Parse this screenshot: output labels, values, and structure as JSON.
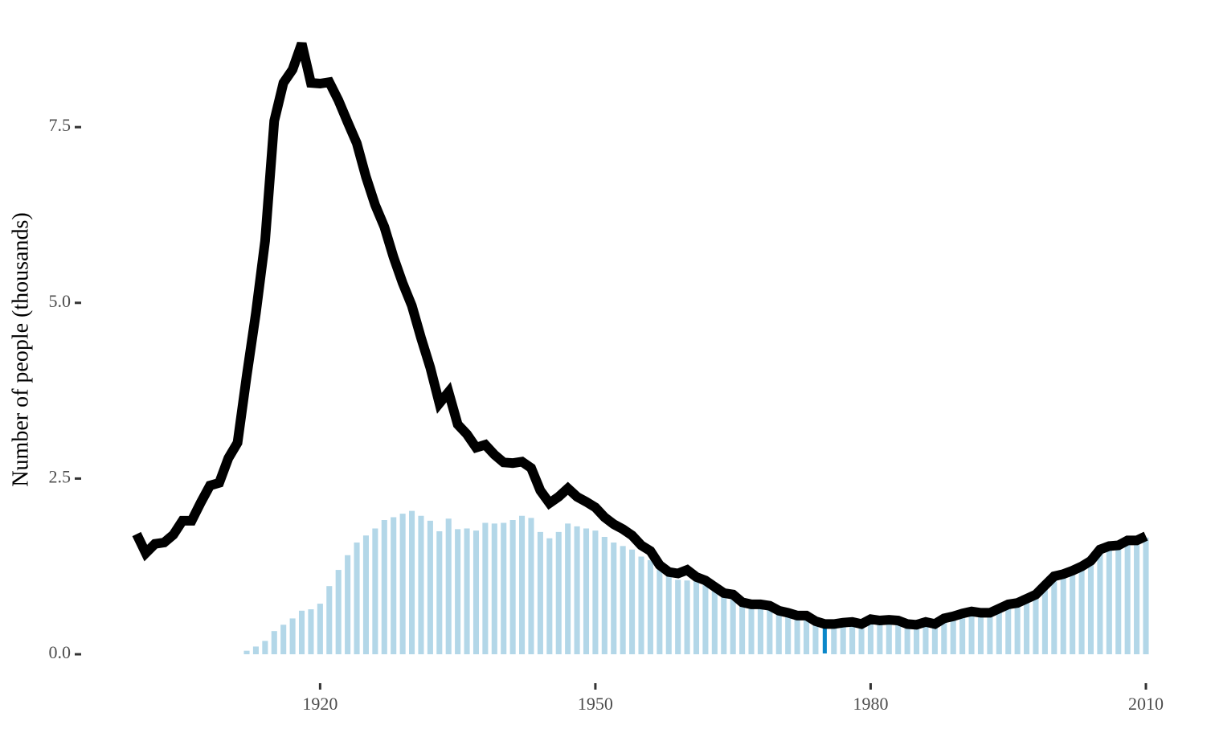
{
  "chart_data": {
    "type": "line-over-bar",
    "ylabel": "Number of people (thousands)",
    "xlim": [
      1900,
      2010
    ],
    "ylim": [
      -0.4,
      9.0
    ],
    "xticks": [
      1920,
      1950,
      1980,
      2010
    ],
    "yticks": [
      {
        "value": 0,
        "label": "0.0"
      },
      2.5,
      {
        "value": 5,
        "label": "5.0"
      },
      7.5
    ],
    "bars": {
      "color": "#b3d7e8",
      "highlight_x": 1975,
      "highlight_color": "#0a87c9",
      "x": [
        1912,
        1913,
        1914,
        1915,
        1916,
        1917,
        1918,
        1919,
        1920,
        1921,
        1922,
        1923,
        1924,
        1925,
        1926,
        1927,
        1928,
        1929,
        1930,
        1931,
        1932,
        1933,
        1934,
        1935,
        1936,
        1937,
        1938,
        1939,
        1940,
        1941,
        1942,
        1943,
        1944,
        1945,
        1946,
        1947,
        1948,
        1949,
        1950,
        1951,
        1952,
        1953,
        1954,
        1955,
        1956,
        1957,
        1958,
        1959,
        1960,
        1961,
        1962,
        1963,
        1964,
        1965,
        1966,
        1967,
        1968,
        1969,
        1970,
        1971,
        1972,
        1973,
        1974,
        1975,
        1976,
        1977,
        1978,
        1979,
        1980,
        1981,
        1982,
        1983,
        1984,
        1985,
        1986,
        1987,
        1988,
        1989,
        1990,
        1991,
        1992,
        1993,
        1994,
        1995,
        1996,
        1997,
        1998,
        1999,
        2000,
        2001,
        2002,
        2003,
        2004,
        2005,
        2006,
        2007,
        2008,
        2009,
        2010
      ],
      "values": [
        0.05,
        0.11,
        0.19,
        0.33,
        0.42,
        0.51,
        0.62,
        0.64,
        0.72,
        0.97,
        1.2,
        1.41,
        1.59,
        1.69,
        1.79,
        1.91,
        1.95,
        2.0,
        2.04,
        1.97,
        1.9,
        1.75,
        1.93,
        1.78,
        1.79,
        1.76,
        1.87,
        1.86,
        1.87,
        1.91,
        1.97,
        1.94,
        1.74,
        1.65,
        1.74,
        1.86,
        1.82,
        1.79,
        1.76,
        1.67,
        1.59,
        1.54,
        1.49,
        1.39,
        1.34,
        1.27,
        1.14,
        1.06,
        1.05,
        1.1,
        0.99,
        0.94,
        0.83,
        0.81,
        0.72,
        0.69,
        0.69,
        0.66,
        0.61,
        0.58,
        0.54,
        0.54,
        0.46,
        0.41,
        0.41,
        0.43,
        0.44,
        0.41,
        0.48,
        0.46,
        0.47,
        0.46,
        0.41,
        0.4,
        0.44,
        0.41,
        0.49,
        0.52,
        0.56,
        0.59,
        0.57,
        0.57,
        0.63,
        0.69,
        0.71,
        0.77,
        0.83,
        0.96,
        1.09,
        1.12,
        1.17,
        1.23,
        1.31,
        1.47,
        1.52,
        1.53,
        1.6,
        1.6,
        1.66
      ]
    },
    "line": {
      "color": "#000000",
      "x": [
        1900,
        1901,
        1902,
        1903,
        1904,
        1905,
        1906,
        1907,
        1908,
        1909,
        1910,
        1911,
        1912,
        1913,
        1914,
        1915,
        1916,
        1917,
        1918,
        1919,
        1920,
        1921,
        1922,
        1923,
        1924,
        1925,
        1926,
        1927,
        1928,
        1929,
        1930,
        1931,
        1932,
        1933,
        1934,
        1935,
        1936,
        1937,
        1938,
        1939,
        1940,
        1941,
        1942,
        1943,
        1944,
        1945,
        1946,
        1947,
        1948,
        1949,
        1950,
        1951,
        1952,
        1953,
        1954,
        1955,
        1956,
        1957,
        1958,
        1959,
        1960,
        1961,
        1962,
        1963,
        1964,
        1965,
        1966,
        1967,
        1968,
        1969,
        1970,
        1971,
        1972,
        1973,
        1974,
        1975,
        1976,
        1977,
        1978,
        1979,
        1980,
        1981,
        1982,
        1983,
        1984,
        1985,
        1986,
        1987,
        1988,
        1989,
        1990,
        1991,
        1992,
        1993,
        1994,
        1995,
        1996,
        1997,
        1998,
        1999,
        2000,
        2001,
        2002,
        2003,
        2004,
        2005,
        2006,
        2007,
        2008,
        2009,
        2010
      ],
      "values": [
        1.71,
        1.44,
        1.57,
        1.59,
        1.7,
        1.9,
        1.9,
        2.16,
        2.4,
        2.44,
        2.79,
        3.01,
        3.96,
        4.85,
        5.88,
        7.59,
        8.13,
        8.32,
        8.69,
        8.13,
        8.12,
        8.14,
        7.88,
        7.57,
        7.27,
        6.79,
        6.39,
        6.08,
        5.65,
        5.28,
        4.96,
        4.5,
        4.08,
        3.57,
        3.73,
        3.27,
        3.13,
        2.94,
        2.98,
        2.84,
        2.73,
        2.72,
        2.74,
        2.65,
        2.33,
        2.15,
        2.24,
        2.36,
        2.24,
        2.17,
        2.09,
        1.95,
        1.85,
        1.78,
        1.69,
        1.55,
        1.47,
        1.27,
        1.17,
        1.15,
        1.2,
        1.1,
        1.05,
        0.96,
        0.87,
        0.85,
        0.74,
        0.71,
        0.71,
        0.69,
        0.62,
        0.59,
        0.55,
        0.55,
        0.47,
        0.43,
        0.43,
        0.45,
        0.46,
        0.43,
        0.5,
        0.48,
        0.49,
        0.48,
        0.43,
        0.42,
        0.46,
        0.43,
        0.51,
        0.54,
        0.58,
        0.61,
        0.59,
        0.59,
        0.65,
        0.71,
        0.73,
        0.79,
        0.85,
        0.98,
        1.11,
        1.14,
        1.19,
        1.25,
        1.33,
        1.49,
        1.54,
        1.55,
        1.62,
        1.62,
        1.68
      ]
    }
  }
}
